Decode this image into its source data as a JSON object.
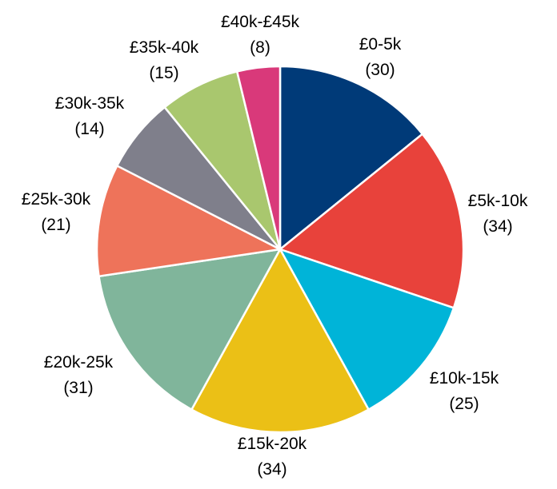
{
  "chart_data": {
    "type": "pie",
    "title": "",
    "start_angle": "top",
    "direction": "clockwise",
    "categories": [
      "£0-5k",
      "£5k-10k",
      "£10k-15k",
      "£15k-20k",
      "£20k-25k",
      "£25k-30k",
      "£30k-35k",
      "£35k-40k",
      "£40k-£45k"
    ],
    "values": [
      30,
      34,
      25,
      34,
      31,
      21,
      14,
      15,
      8
    ],
    "value_labels": [
      "(30)",
      "(34)",
      "(25)",
      "(34)",
      "(31)",
      "(21)",
      "(14)",
      "(15)",
      "(8)"
    ],
    "colors": [
      "#003a78",
      "#e8423b",
      "#00b4d8",
      "#ebc016",
      "#80b59b",
      "#ee735a",
      "#7f7f8b",
      "#a9c76e",
      "#d9397a"
    ],
    "legend": "none",
    "slice_border_color": "#ffffff"
  }
}
